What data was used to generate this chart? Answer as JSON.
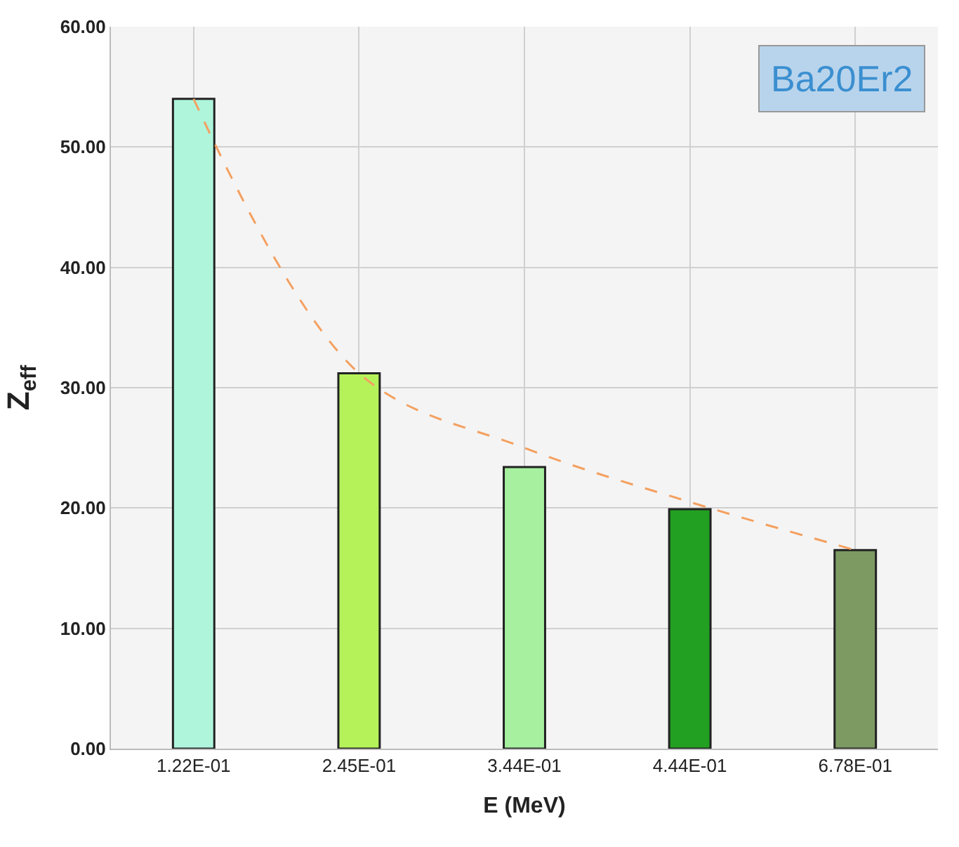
{
  "chart_data": {
    "type": "bar",
    "xlabel": "E (MeV)",
    "ylabel": "Z$_{eff}$",
    "categories": [
      "1.22E-01",
      "2.45E-01",
      "3.44E-01",
      "4.44E-01",
      "6.78E-01"
    ],
    "series": [
      {
        "values": [
          54.0,
          31.2,
          23.4,
          19.9,
          16.5
        ],
        "colors": [
          "#aef5dc",
          "#b5f25a",
          "#a6f0a0",
          "#22a022",
          "#7c9a62"
        ]
      },
      {
        "type": "line",
        "color": "#f4a060",
        "line_style": "dashed",
        "values": [
          54.0,
          31.2,
          25.0,
          20.5,
          16.5
        ]
      }
    ],
    "ylim": [
      0,
      60
    ],
    "yticks": [
      {
        "value": 0,
        "label": "0.00"
      },
      {
        "value": 10,
        "label": "10.00"
      },
      {
        "value": 20,
        "label": "20.00"
      },
      {
        "value": 30,
        "label": "30.00"
      },
      {
        "value": 40,
        "label": "40.00"
      },
      {
        "value": 50,
        "label": "50.00"
      },
      {
        "value": 60,
        "label": "60.00"
      }
    ],
    "grid": true,
    "annotations": [
      "Ba20Er2"
    ]
  }
}
